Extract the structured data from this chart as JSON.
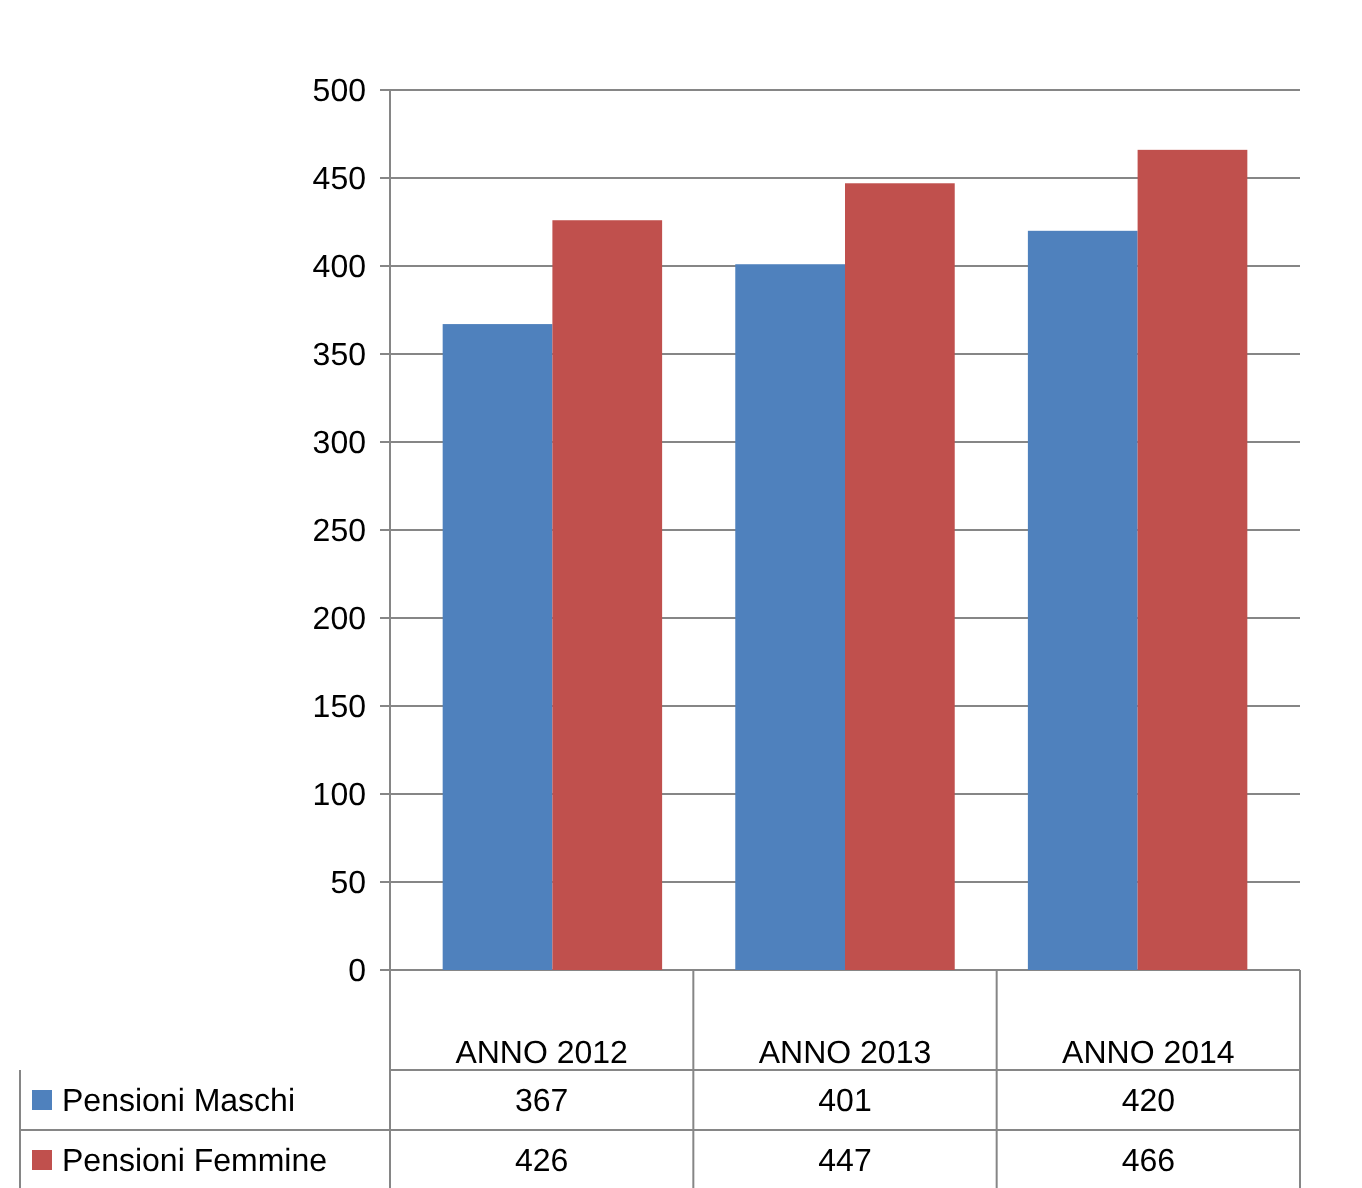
{
  "chart_data": {
    "type": "bar",
    "categories": [
      "ANNO 2012",
      "ANNO 2013",
      "ANNO 2014"
    ],
    "series": [
      {
        "name": "Pensioni Maschi",
        "color": "#4f81bd",
        "values": [
          367,
          401,
          420
        ]
      },
      {
        "name": "Pensioni Femmine",
        "color": "#c0504d",
        "values": [
          426,
          447,
          466
        ]
      }
    ],
    "ylim": [
      0,
      500
    ],
    "yticks": [
      0,
      50,
      100,
      150,
      200,
      250,
      300,
      350,
      400,
      450,
      500
    ],
    "grid": "y",
    "legend": "bottom",
    "data_labels": true
  }
}
